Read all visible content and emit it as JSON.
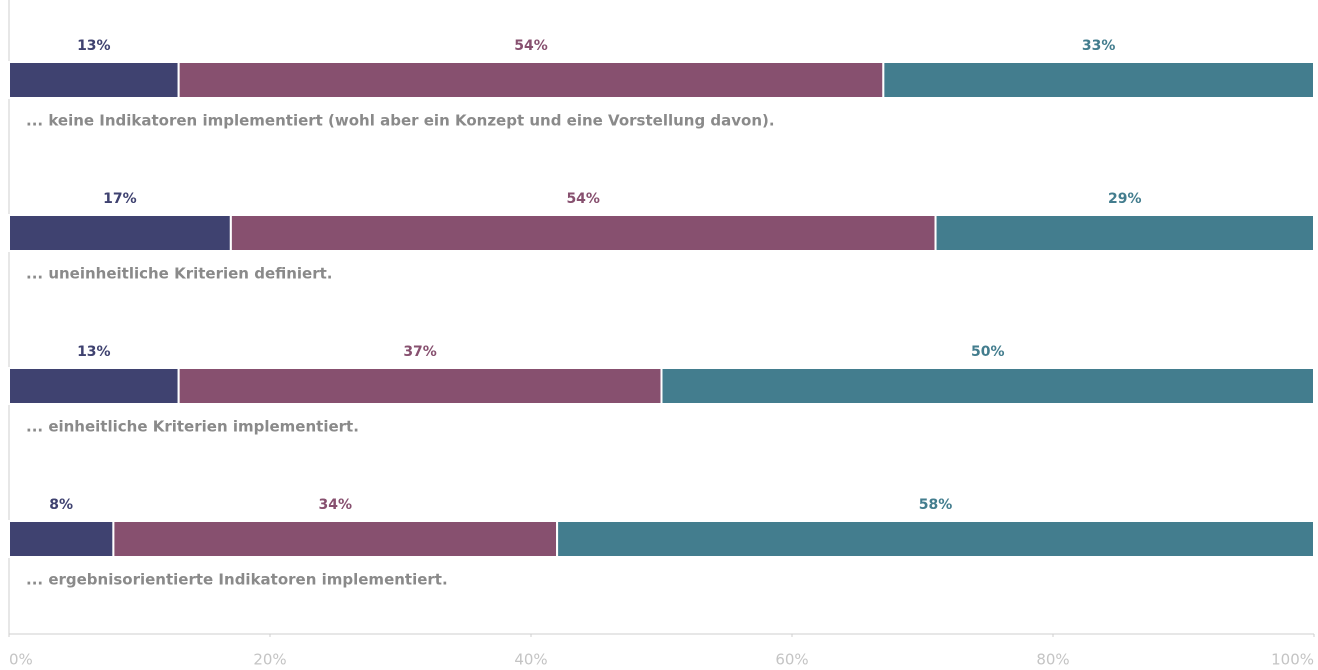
{
  "chart_data": {
    "type": "bar",
    "orientation": "horizontal",
    "stacked": true,
    "categories": [
      "... keine Indikatoren implementiert (wohl aber ein Konzept und eine Vorstellung davon).",
      "... uneinheitliche Kriterien definiert.",
      "... einheitliche Kriterien implementiert.",
      "... ergebnisorientierte Indikatoren implementiert."
    ],
    "series": [
      {
        "color": "#3f4270",
        "values": [
          13,
          17,
          13,
          8
        ],
        "value_labels": [
          "13%",
          "17%",
          "13%",
          "8%"
        ]
      },
      {
        "color": "#87506f",
        "values": [
          54,
          54,
          37,
          34
        ],
        "value_labels": [
          "54%",
          "54%",
          "37%",
          "34%"
        ]
      },
      {
        "color": "#437d8e",
        "values": [
          33,
          29,
          50,
          58
        ],
        "value_labels": [
          "33%",
          "29%",
          "50%",
          "58%"
        ]
      }
    ],
    "xlim": [
      0,
      100
    ],
    "xticks": [
      {
        "value": 0,
        "label": "0%"
      },
      {
        "value": 20,
        "label": "20%"
      },
      {
        "value": 40,
        "label": "40%"
      },
      {
        "value": 60,
        "label": "60%"
      },
      {
        "value": 80,
        "label": "80%"
      },
      {
        "value": 100,
        "label": "100%"
      }
    ]
  }
}
